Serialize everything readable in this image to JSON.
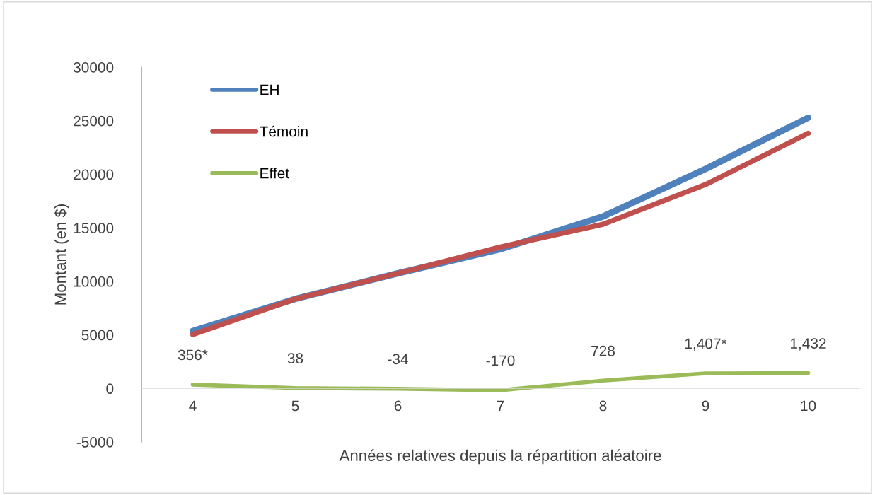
{
  "chart_data": {
    "type": "line",
    "xlabel": "Années relatives depuis la répartition aléatoire",
    "ylabel": "Montant (en $)",
    "categories": [
      "4",
      "5",
      "6",
      "7",
      "8",
      "9",
      "10"
    ],
    "series": [
      {
        "name": "EH",
        "color": "#4f81bd",
        "values": [
          5370,
          8360,
          10750,
          13000,
          16060,
          20500,
          25280
        ]
      },
      {
        "name": "Témoin",
        "color": "#c0504d",
        "values": [
          5040,
          8360,
          10750,
          13200,
          15330,
          19040,
          23820
        ]
      },
      {
        "name": "Effet",
        "color": "#9bbb59",
        "values": [
          356,
          38,
          -34,
          -170,
          728,
          1407,
          1432
        ],
        "value_labels": [
          "356*",
          "38",
          "-34",
          "-170",
          "728",
          "1,407*",
          "1,432"
        ]
      }
    ],
    "ylim": [
      -5000,
      30000
    ],
    "yticks": [
      -5000,
      0,
      5000,
      10000,
      15000,
      20000,
      25000,
      30000
    ],
    "grid": false,
    "legend": "top left",
    "marker": "none",
    "line_style": "solid"
  }
}
